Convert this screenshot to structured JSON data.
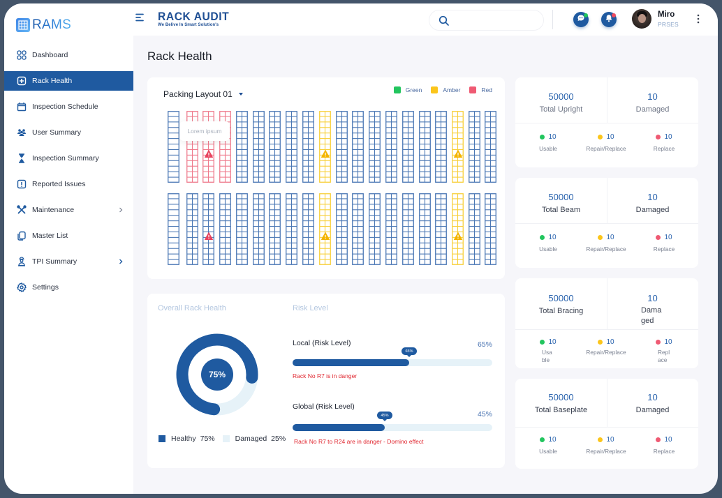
{
  "app": {
    "brand": "RAMS",
    "title": "RACK AUDIT",
    "tagline": "We Belive In Smart Solution's"
  },
  "header": {
    "search_placeholder": "",
    "user": {
      "name": "Miro",
      "role": "PRSES"
    },
    "icons": [
      "menu-icon",
      "search-icon",
      "chat-icon",
      "bell-icon",
      "more-vertical-icon"
    ]
  },
  "sidebar": {
    "items": [
      {
        "label": "Dashboard",
        "icon": "grid-icon",
        "active": false,
        "has_submenu": false
      },
      {
        "label": "Rack Health",
        "icon": "health-icon",
        "active": true,
        "has_submenu": false
      },
      {
        "label": "Inspection Schedule",
        "icon": "calendar-icon",
        "active": false,
        "has_submenu": false
      },
      {
        "label": "User Summary",
        "icon": "users-icon",
        "active": false,
        "has_submenu": false
      },
      {
        "label": "Inspection Summary",
        "icon": "hourglass-icon",
        "active": false,
        "has_submenu": false
      },
      {
        "label": "Reported Issues",
        "icon": "alert-icon",
        "active": false,
        "has_submenu": false
      },
      {
        "label": "Maintenance",
        "icon": "tools-icon",
        "active": false,
        "has_submenu": true
      },
      {
        "label": "Master List",
        "icon": "copy-icon",
        "active": false,
        "has_submenu": false
      },
      {
        "label": "TPI Summary",
        "icon": "inspector-icon",
        "active": false,
        "has_submenu": true
      },
      {
        "label": "Settings",
        "icon": "gear-icon",
        "active": false,
        "has_submenu": false
      }
    ]
  },
  "page": {
    "title": "Rack Health"
  },
  "layout": {
    "selected": "Packing Layout 01",
    "legend": [
      {
        "label": "Green",
        "color": "#22c55e"
      },
      {
        "label": "Amber",
        "color": "#fbc51b"
      },
      {
        "label": "Red",
        "color": "#ef5a73"
      }
    ],
    "tooltip": "Lorem ipsum",
    "rows": [
      {
        "racks": [
          "blue-single",
          "red",
          "red",
          "red",
          "blue",
          "blue",
          "blue",
          "blue",
          "blue",
          "amber",
          "blue",
          "blue",
          "blue",
          "blue",
          "blue",
          "blue",
          "blue",
          "amber",
          "blue",
          "blue"
        ],
        "warnings": [
          {
            "rack": 2,
            "level": "red"
          },
          {
            "rack": 9,
            "level": "amber"
          },
          {
            "rack": 17,
            "level": "amber"
          }
        ]
      },
      {
        "racks": [
          "blue-single",
          "blue",
          "blue",
          "blue",
          "blue",
          "blue",
          "blue",
          "blue",
          "blue",
          "amber",
          "blue",
          "blue",
          "blue",
          "blue",
          "blue",
          "blue",
          "blue",
          "amber",
          "blue",
          "blue"
        ],
        "warnings": [
          {
            "rack": 2,
            "level": "red"
          },
          {
            "rack": 9,
            "level": "amber"
          },
          {
            "rack": 17,
            "level": "amber"
          }
        ]
      }
    ]
  },
  "health": {
    "title": "Overall Rack Health",
    "center_label": "75%",
    "legend": [
      {
        "label": "Healthy",
        "value": "75%",
        "color": "#1f5aa0"
      },
      {
        "label": "Damaged",
        "value": "25%",
        "color": "#e6f2f8"
      }
    ]
  },
  "risk": {
    "title": "Risk Level",
    "items": [
      {
        "label": "Local (Risk Level)",
        "value": "65%",
        "percent": 65,
        "message": "Rack No R7 is in danger"
      },
      {
        "label": "Global (Risk Level)",
        "value": "45%",
        "percent": 45,
        "message": "Rack No R7 to R24 are in danger - Domino effect"
      }
    ]
  },
  "stats": [
    {
      "total": "50000",
      "total_label": "Total Upright",
      "damaged": "10",
      "damaged_label": "Damaged",
      "breakdown": [
        {
          "value": "10",
          "label": "Usable"
        },
        {
          "value": "10",
          "label": "Repair/Replace"
        },
        {
          "value": "10",
          "label": "Replace"
        }
      ]
    },
    {
      "total": "50000",
      "total_label": "Total Beam",
      "damaged": "10",
      "damaged_label": "Damaged",
      "breakdown": [
        {
          "value": "10",
          "label": "Usable"
        },
        {
          "value": "10",
          "label": "Repair/Replace"
        },
        {
          "value": "10",
          "label": "Replace"
        }
      ]
    },
    {
      "total": "50000",
      "total_label": "Total Bracing",
      "damaged": "10",
      "damaged_label": "Damaged",
      "breakdown": [
        {
          "value": "10",
          "label": "Usable"
        },
        {
          "value": "10",
          "label": "Repair/Replace"
        },
        {
          "value": "10",
          "label": "Replace"
        }
      ]
    },
    {
      "total": "50000",
      "total_label": "Total Baseplate",
      "damaged": "10",
      "damaged_label": "Damaged",
      "breakdown": [
        {
          "value": "10",
          "label": "Usable"
        },
        {
          "value": "10",
          "label": "Repair/Replace"
        },
        {
          "value": "10",
          "label": "Replace"
        }
      ]
    }
  ],
  "colors": {
    "primary": "#1f5aa0",
    "rack_blue": "#4a77b4",
    "rack_red": "#ef7a8c",
    "rack_amber": "#f7cf3a",
    "status_green": "#22c55e",
    "status_amber": "#fbc51b",
    "status_red": "#ef5a73",
    "danger_text": "#e0262f"
  }
}
